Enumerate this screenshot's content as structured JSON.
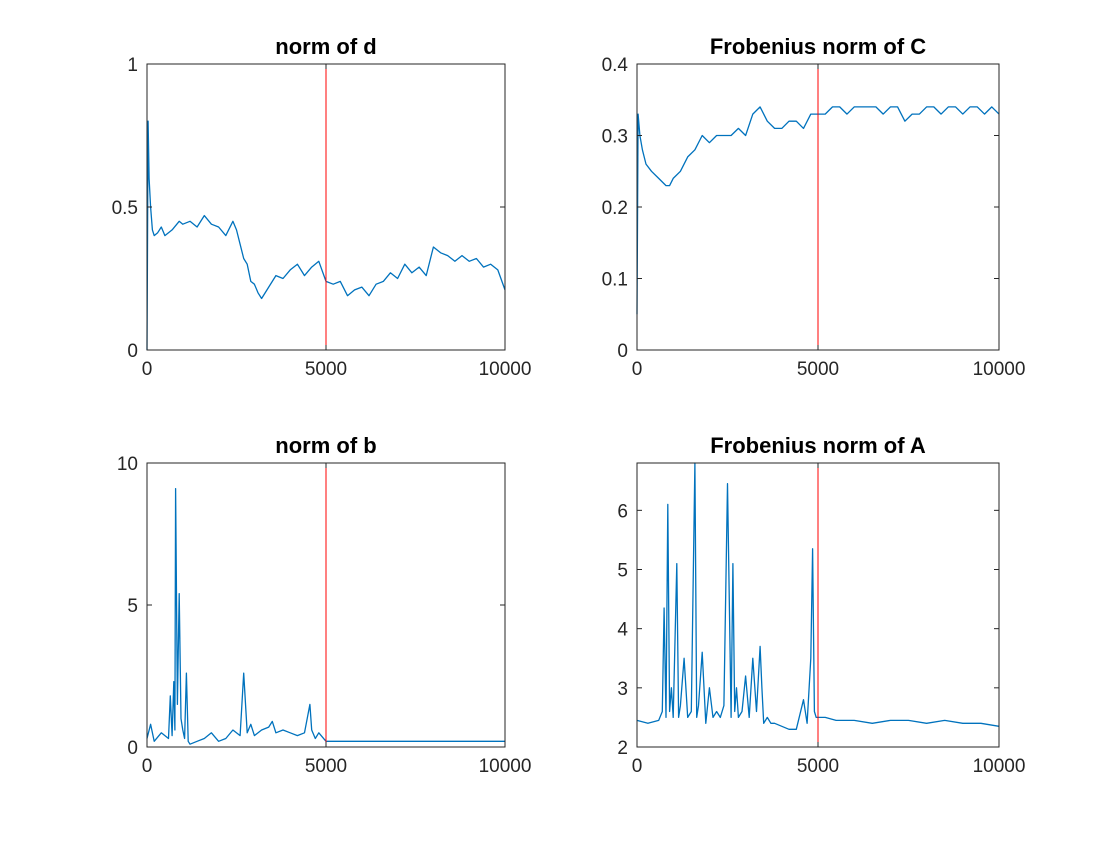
{
  "colors": {
    "series": "#0072BD",
    "marker": "#FF0000",
    "axis": "#262626",
    "background": "#FFFFFF"
  },
  "chart_data": [
    {
      "type": "line",
      "title": "norm of d",
      "xlabel": "",
      "ylabel": "",
      "xlim": [
        0,
        10000
      ],
      "ylim": [
        0,
        1
      ],
      "xticks": [
        0,
        5000,
        10000
      ],
      "xtick_labels": [
        "0",
        "5000",
        "10000"
      ],
      "yticks": [
        0,
        0.5,
        1
      ],
      "ytick_labels": [
        "0",
        "0.5",
        "1"
      ],
      "grid": false,
      "box": true,
      "vline_x": 5000,
      "series": [
        {
          "values_x": [
            0,
            30,
            60,
            100,
            150,
            200,
            300,
            400,
            500,
            700,
            900,
            1000,
            1200,
            1400,
            1600,
            1800,
            2000,
            2200,
            2400,
            2500,
            2600,
            2700,
            2800,
            2900,
            3000,
            3100,
            3200,
            3400,
            3600,
            3800,
            4000,
            4200,
            4400,
            4600,
            4800,
            5000,
            5200,
            5400,
            5600,
            5800,
            6000,
            6200,
            6400,
            6600,
            6800,
            7000,
            7200,
            7400,
            7600,
            7800,
            8000,
            8200,
            8400,
            8600,
            8800,
            9000,
            9200,
            9400,
            9600,
            9800,
            10000
          ],
          "values_y": [
            0.0,
            0.8,
            0.6,
            0.5,
            0.42,
            0.4,
            0.41,
            0.43,
            0.4,
            0.42,
            0.45,
            0.44,
            0.45,
            0.43,
            0.47,
            0.44,
            0.43,
            0.4,
            0.45,
            0.42,
            0.37,
            0.32,
            0.3,
            0.24,
            0.23,
            0.2,
            0.18,
            0.22,
            0.26,
            0.25,
            0.28,
            0.3,
            0.26,
            0.29,
            0.31,
            0.24,
            0.23,
            0.24,
            0.19,
            0.21,
            0.22,
            0.19,
            0.23,
            0.24,
            0.27,
            0.25,
            0.3,
            0.27,
            0.29,
            0.26,
            0.36,
            0.34,
            0.33,
            0.31,
            0.33,
            0.31,
            0.32,
            0.29,
            0.3,
            0.28,
            0.21
          ]
        }
      ]
    },
    {
      "type": "line",
      "title": "Frobenius norm of C",
      "xlabel": "",
      "ylabel": "",
      "xlim": [
        0,
        10000
      ],
      "ylim": [
        0,
        0.4
      ],
      "xticks": [
        0,
        5000,
        10000
      ],
      "xtick_labels": [
        "0",
        "5000",
        "10000"
      ],
      "yticks": [
        0,
        0.1,
        0.2,
        0.3,
        0.4
      ],
      "ytick_labels": [
        "0",
        "0.1",
        "0.2",
        "0.3",
        "0.4"
      ],
      "grid": false,
      "box": true,
      "vline_x": 5000,
      "series": [
        {
          "values_x": [
            0,
            30,
            80,
            150,
            250,
            400,
            600,
            800,
            900,
            1000,
            1200,
            1400,
            1600,
            1800,
            2000,
            2200,
            2400,
            2600,
            2800,
            3000,
            3200,
            3400,
            3500,
            3600,
            3800,
            4000,
            4200,
            4400,
            4600,
            4800,
            5000,
            5200,
            5400,
            5600,
            5800,
            6000,
            6200,
            6400,
            6600,
            6800,
            7000,
            7200,
            7400,
            7600,
            7800,
            8000,
            8200,
            8400,
            8600,
            8800,
            9000,
            9200,
            9400,
            9600,
            9800,
            10000
          ],
          "values_y": [
            0.05,
            0.33,
            0.3,
            0.28,
            0.26,
            0.25,
            0.24,
            0.23,
            0.23,
            0.24,
            0.25,
            0.27,
            0.28,
            0.3,
            0.29,
            0.3,
            0.3,
            0.3,
            0.31,
            0.3,
            0.33,
            0.34,
            0.33,
            0.32,
            0.31,
            0.31,
            0.32,
            0.32,
            0.31,
            0.33,
            0.33,
            0.33,
            0.34,
            0.34,
            0.33,
            0.34,
            0.34,
            0.34,
            0.34,
            0.33,
            0.34,
            0.34,
            0.32,
            0.33,
            0.33,
            0.34,
            0.34,
            0.33,
            0.34,
            0.34,
            0.33,
            0.34,
            0.34,
            0.33,
            0.34,
            0.33
          ]
        }
      ]
    },
    {
      "type": "line",
      "title": "norm of b",
      "xlabel": "",
      "ylabel": "",
      "xlim": [
        0,
        10000
      ],
      "ylim": [
        0,
        10
      ],
      "xticks": [
        0,
        5000,
        10000
      ],
      "xtick_labels": [
        "0",
        "5000",
        "10000"
      ],
      "yticks": [
        0,
        5,
        10
      ],
      "ytick_labels": [
        "0",
        "5",
        "10"
      ],
      "grid": false,
      "box": true,
      "vline_x": 5000,
      "series": [
        {
          "values_x": [
            0,
            100,
            200,
            400,
            600,
            650,
            700,
            750,
            780,
            800,
            850,
            900,
            950,
            1000,
            1050,
            1100,
            1150,
            1200,
            1400,
            1600,
            1800,
            2000,
            2200,
            2400,
            2600,
            2700,
            2800,
            2900,
            3000,
            3200,
            3400,
            3500,
            3600,
            3800,
            4000,
            4200,
            4400,
            4550,
            4600,
            4700,
            4800,
            5000,
            5200,
            5600,
            6000,
            6400,
            6800,
            7200,
            7600,
            8000,
            8400,
            8800,
            9200,
            9600,
            10000
          ],
          "values_y": [
            0.3,
            0.8,
            0.2,
            0.5,
            0.3,
            1.8,
            0.4,
            2.3,
            0.6,
            9.1,
            1.5,
            5.4,
            1.0,
            0.6,
            0.3,
            2.6,
            0.2,
            0.1,
            0.2,
            0.3,
            0.5,
            0.2,
            0.3,
            0.6,
            0.4,
            2.6,
            0.5,
            0.8,
            0.4,
            0.6,
            0.7,
            0.9,
            0.5,
            0.6,
            0.5,
            0.4,
            0.5,
            1.5,
            0.6,
            0.3,
            0.5,
            0.2,
            0.2,
            0.2,
            0.2,
            0.2,
            0.2,
            0.2,
            0.2,
            0.2,
            0.2,
            0.2,
            0.2,
            0.2,
            0.2
          ]
        }
      ]
    },
    {
      "type": "line",
      "title": "Frobenius norm of A",
      "xlabel": "",
      "ylabel": "",
      "xlim": [
        0,
        10000
      ],
      "ylim": [
        2,
        6.8
      ],
      "xticks": [
        0,
        5000,
        10000
      ],
      "xtick_labels": [
        "0",
        "5000",
        "10000"
      ],
      "yticks": [
        2,
        3,
        4,
        5,
        6
      ],
      "ytick_labels": [
        "2",
        "3",
        "4",
        "5",
        "6"
      ],
      "grid": false,
      "box": true,
      "vline_x": 5000,
      "series": [
        {
          "values_x": [
            0,
            300,
            600,
            700,
            750,
            800,
            850,
            900,
            950,
            1000,
            1100,
            1150,
            1200,
            1300,
            1400,
            1500,
            1600,
            1650,
            1700,
            1800,
            1900,
            2000,
            2100,
            2200,
            2300,
            2400,
            2500,
            2600,
            2650,
            2700,
            2750,
            2800,
            2900,
            3000,
            3100,
            3200,
            3300,
            3400,
            3450,
            3500,
            3600,
            3700,
            3800,
            4000,
            4200,
            4400,
            4600,
            4700,
            4800,
            4850,
            4900,
            4950,
            5000,
            5200,
            5500,
            6000,
            6500,
            7000,
            7500,
            8000,
            8500,
            9000,
            9500,
            10000
          ],
          "values_y": [
            2.45,
            2.4,
            2.45,
            2.6,
            4.35,
            2.5,
            6.1,
            2.6,
            3.0,
            2.5,
            5.1,
            2.5,
            2.7,
            3.5,
            2.5,
            2.6,
            6.8,
            2.5,
            2.7,
            3.6,
            2.4,
            3.0,
            2.5,
            2.6,
            2.5,
            2.7,
            6.45,
            2.5,
            5.1,
            2.6,
            3.0,
            2.5,
            2.6,
            3.2,
            2.5,
            3.5,
            2.6,
            3.7,
            3.0,
            2.4,
            2.5,
            2.4,
            2.4,
            2.35,
            2.3,
            2.3,
            2.8,
            2.4,
            3.5,
            5.35,
            2.6,
            2.5,
            2.5,
            2.5,
            2.45,
            2.45,
            2.4,
            2.45,
            2.45,
            2.4,
            2.45,
            2.4,
            2.4,
            2.35
          ]
        }
      ]
    }
  ]
}
